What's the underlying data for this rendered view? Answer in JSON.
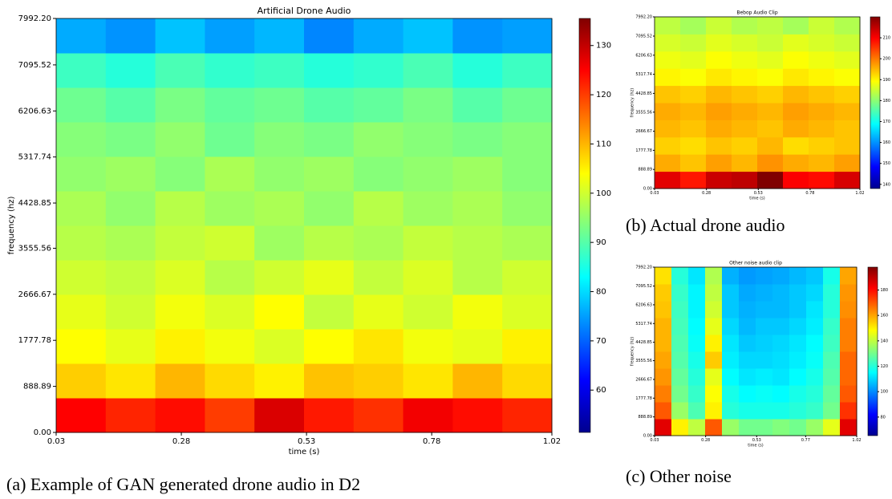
{
  "chart_data": [
    {
      "type": "spectrogram",
      "title": "Artificial Drone Audio",
      "xlabel": "time (s)",
      "ylabel": "frequency (hz)",
      "caption": "(a) Example of GAN generated drone audio in D2",
      "colormap": "jet",
      "xlim": [
        0.03,
        1.02
      ],
      "xticks": [
        0.03,
        0.28,
        0.53,
        0.78,
        1.02
      ],
      "ylim": [
        0,
        7992.2
      ],
      "yticks": [
        {
          "value": 0,
          "label": "0.00"
        },
        888.89,
        1777.78,
        2666.67,
        3555.56,
        4428.85,
        5317.74,
        6206.63,
        7095.52,
        {
          "value": 7992.2,
          "label": "7992.20"
        }
      ],
      "clim": [
        51.4,
        135.5
      ],
      "cticks": [
        60,
        70,
        80,
        90,
        100,
        110,
        120,
        130
      ],
      "z": [
        [
          125,
          122,
          124,
          120,
          128,
          123,
          121,
          126,
          124,
          122
        ],
        [
          108,
          106,
          110,
          107,
          105,
          109,
          108,
          106,
          110,
          107
        ],
        [
          104,
          102,
          105,
          103,
          101,
          104,
          106,
          103,
          102,
          105
        ],
        [
          102,
          100,
          103,
          101,
          104,
          99,
          102,
          100,
          103,
          101
        ],
        [
          100,
          99,
          101,
          98,
          100,
          102,
          99,
          101,
          98,
          100
        ],
        [
          98,
          97,
          99,
          100,
          96,
          98,
          97,
          99,
          98,
          97
        ],
        [
          97,
          95,
          98,
          96,
          97,
          95,
          98,
          96,
          97,
          95
        ],
        [
          95,
          96,
          94,
          97,
          95,
          96,
          94,
          95,
          96,
          94
        ],
        [
          94,
          93,
          95,
          92,
          94,
          93,
          95,
          94,
          93,
          94
        ],
        [
          92,
          90,
          93,
          91,
          92,
          90,
          91,
          93,
          90,
          92
        ],
        [
          88,
          86,
          89,
          87,
          88,
          86,
          87,
          89,
          86,
          88
        ],
        [
          76,
          74,
          78,
          75,
          77,
          73,
          76,
          78,
          74,
          75
        ]
      ]
    },
    {
      "type": "spectrogram",
      "title": "Bebop Audio Clip",
      "xlabel": "time (s)",
      "ylabel": "frequency (hz)",
      "caption": "(b) Actual drone audio",
      "colormap": "jet",
      "xlim": [
        0.03,
        1.02
      ],
      "xticks": [
        0.03,
        0.28,
        0.53,
        0.78,
        1.02
      ],
      "ylim": [
        0,
        7992.2
      ],
      "yticks": [
        {
          "value": 0,
          "label": "0.00"
        },
        888.89,
        1777.78,
        2666.67,
        3555.56,
        4428.85,
        5317.74,
        6206.63,
        7095.52,
        {
          "value": 7992.2,
          "label": "7992.20"
        }
      ],
      "clim": [
        138,
        220
      ],
      "cticks": [
        140,
        150,
        160,
        170,
        180,
        190,
        200,
        210
      ],
      "z": [
        [
          212,
          208,
          214,
          215,
          220,
          210,
          209,
          213
        ],
        [
          196,
          194,
          197,
          195,
          198,
          196,
          195,
          197
        ],
        [
          193,
          192,
          194,
          193,
          195,
          192,
          193,
          194
        ],
        [
          195,
          194,
          196,
          195,
          194,
          196,
          195,
          194
        ],
        [
          196,
          195,
          197,
          196,
          195,
          197,
          196,
          195
        ],
        [
          194,
          193,
          195,
          194,
          193,
          195,
          194,
          193
        ],
        [
          190,
          189,
          191,
          190,
          189,
          191,
          190,
          189
        ],
        [
          188,
          187,
          189,
          188,
          187,
          189,
          188,
          187
        ],
        [
          186,
          185,
          187,
          186,
          185,
          187,
          186,
          185
        ],
        [
          184,
          182,
          185,
          183,
          184,
          182,
          185,
          183
        ]
      ]
    },
    {
      "type": "spectrogram",
      "title": "Other noise audio clip",
      "xlabel": "time (s)",
      "ylabel": "frequency (hz)",
      "caption": "(c) Other noise",
      "colormap": "jet",
      "xlim": [
        0.03,
        1.02
      ],
      "xticks": [
        0.03,
        0.28,
        0.53,
        0.77,
        1.02
      ],
      "ylim": [
        0,
        7992.2
      ],
      "yticks": [
        {
          "value": 0,
          "label": "0.00"
        },
        888.89,
        1777.78,
        2666.67,
        3555.56,
        4428.85,
        5317.74,
        6206.63,
        7095.52,
        {
          "value": 7992.2,
          "label": "7992.20"
        }
      ],
      "clim": [
        65.4,
        198
      ],
      "cticks": [
        80,
        100,
        120,
        140,
        160,
        180
      ],
      "z": [
        [
          185,
          150,
          140,
          170,
          135,
          130,
          130,
          132,
          130,
          135,
          145,
          185
        ],
        [
          170,
          135,
          125,
          150,
          120,
          118,
          118,
          118,
          120,
          122,
          130,
          175
        ],
        [
          165,
          130,
          122,
          148,
          118,
          115,
          116,
          115,
          118,
          120,
          128,
          170
        ],
        [
          162,
          128,
          120,
          145,
          115,
          112,
          113,
          112,
          115,
          118,
          126,
          168
        ],
        [
          160,
          126,
          118,
          155,
          113,
          110,
          110,
          111,
          113,
          116,
          125,
          168
        ],
        [
          158,
          125,
          116,
          150,
          112,
          108,
          109,
          110,
          112,
          115,
          123,
          165
        ],
        [
          158,
          124,
          115,
          145,
          110,
          106,
          108,
          108,
          110,
          113,
          122,
          165
        ],
        [
          156,
          123,
          114,
          142,
          108,
          105,
          106,
          106,
          108,
          112,
          120,
          163
        ],
        [
          155,
          122,
          114,
          140,
          108,
          104,
          105,
          106,
          108,
          110,
          120,
          162
        ],
        [
          152,
          120,
          112,
          138,
          105,
          102,
          103,
          104,
          106,
          108,
          118,
          160
        ]
      ]
    }
  ]
}
